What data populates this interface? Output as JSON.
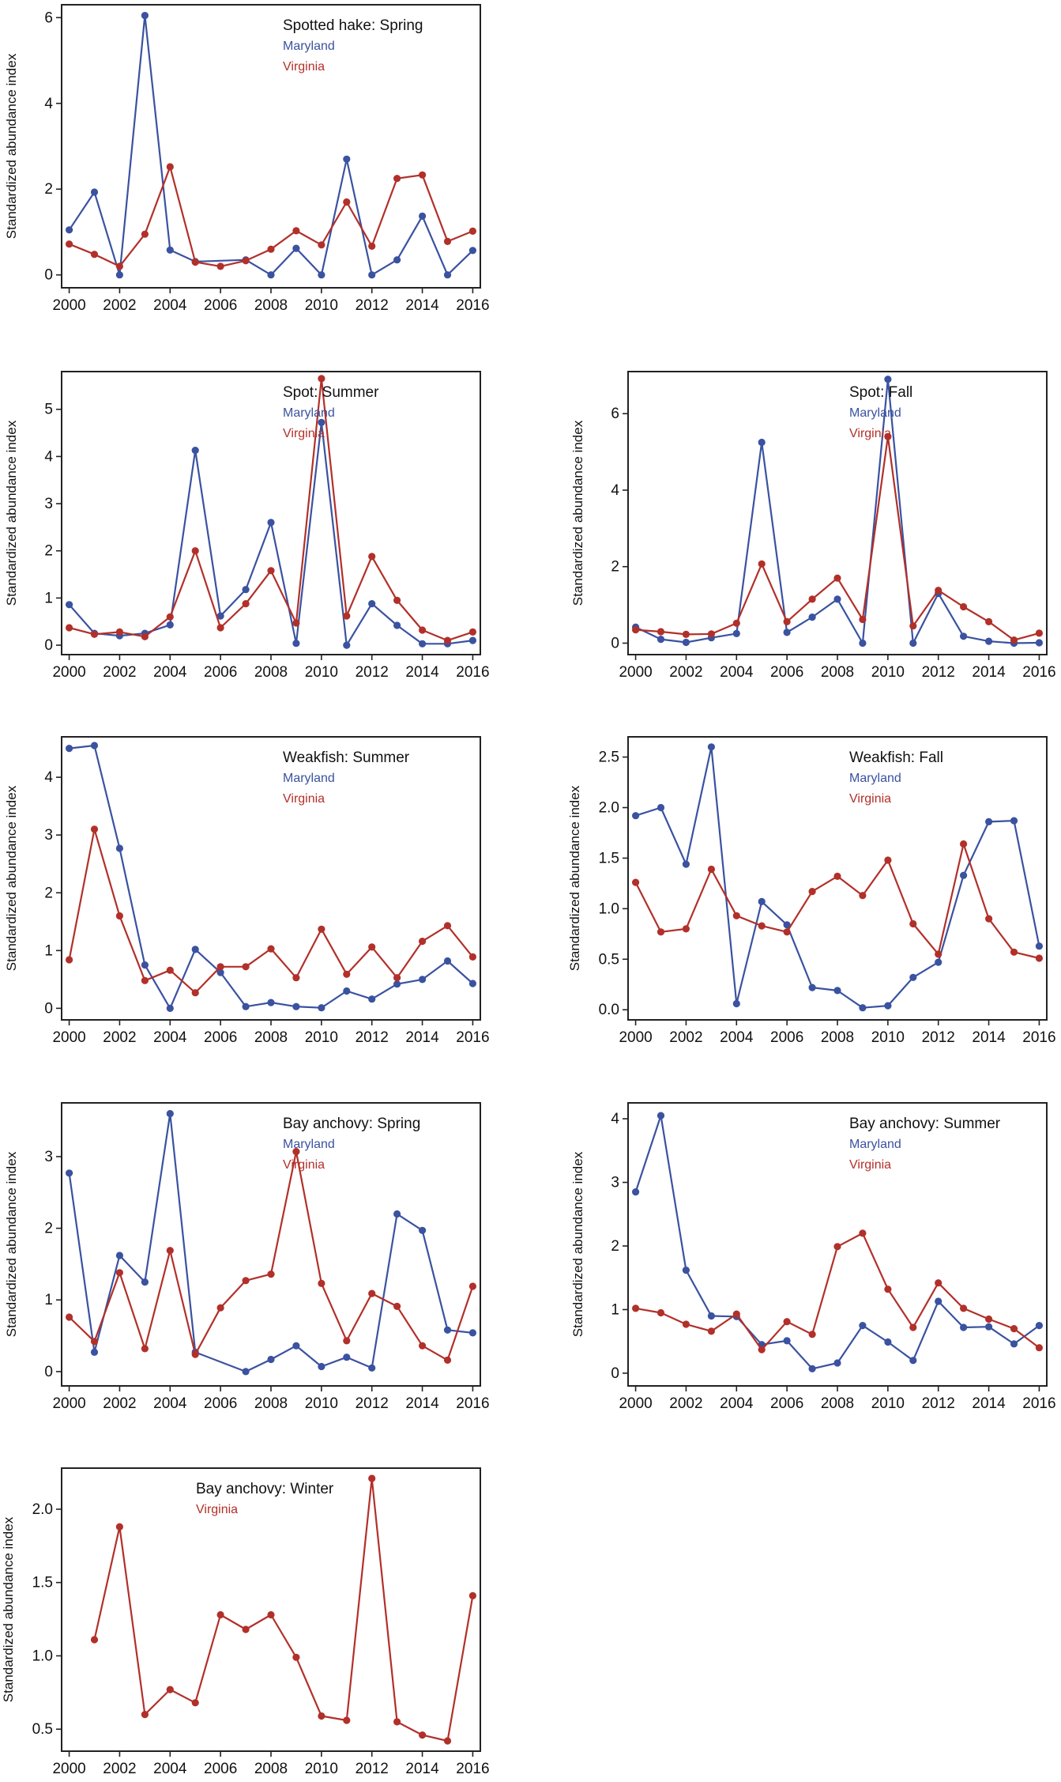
{
  "chart_data": [
    {
      "type": "line",
      "title": "Spotted hake: Spring",
      "ylabel": "Standardized abundance index",
      "xlabel": "",
      "x": [
        2000,
        2001,
        2002,
        2003,
        2004,
        2005,
        2006,
        2007,
        2008,
        2009,
        2010,
        2011,
        2012,
        2013,
        2014,
        2015,
        2016
      ],
      "xlim": [
        1999.7,
        2016.3
      ],
      "ylim": [
        -0.3,
        6.3
      ],
      "xticks": [
        2000,
        2002,
        2004,
        2006,
        2008,
        2010,
        2012,
        2014,
        2016
      ],
      "yticks": [
        0,
        2,
        4,
        6
      ],
      "ytick_labels": [
        "0",
        "2",
        "4",
        "6"
      ],
      "series": [
        {
          "name": "Maryland",
          "color": "#3a52a0",
          "values": [
            1.05,
            1.93,
            0.0,
            6.05,
            0.58,
            0.31,
            null,
            0.35,
            0.0,
            0.62,
            0.0,
            2.7,
            0.0,
            0.35,
            1.37,
            0.0,
            0.57
          ]
        },
        {
          "name": "Virginia",
          "color": "#b2302a",
          "values": [
            0.72,
            0.48,
            0.2,
            0.95,
            2.52,
            0.3,
            0.2,
            0.33,
            0.6,
            1.03,
            0.7,
            1.7,
            0.67,
            2.25,
            2.33,
            0.78,
            1.02
          ]
        }
      ],
      "legend_position": "top-right"
    },
    {
      "type": "line",
      "title": "Spot: Summer",
      "ylabel": "Standardized abundance index",
      "xlabel": "",
      "x": [
        2000,
        2001,
        2002,
        2003,
        2004,
        2005,
        2006,
        2007,
        2008,
        2009,
        2010,
        2011,
        2012,
        2013,
        2014,
        2015,
        2016
      ],
      "xlim": [
        1999.7,
        2016.3
      ],
      "ylim": [
        -0.2,
        5.8
      ],
      "xticks": [
        2000,
        2002,
        2004,
        2006,
        2008,
        2010,
        2012,
        2014,
        2016
      ],
      "yticks": [
        0,
        1,
        2,
        3,
        4,
        5
      ],
      "ytick_labels": [
        "0",
        "1",
        "2",
        "3",
        "4",
        "5"
      ],
      "series": [
        {
          "name": "Maryland",
          "color": "#3a52a0",
          "values": [
            0.86,
            0.25,
            0.2,
            0.25,
            0.43,
            4.13,
            0.62,
            1.18,
            2.6,
            0.04,
            4.72,
            0.0,
            0.88,
            0.42,
            0.03,
            0.03,
            0.1
          ]
        },
        {
          "name": "Virginia",
          "color": "#b2302a",
          "values": [
            0.37,
            0.23,
            0.28,
            0.18,
            0.6,
            2.0,
            0.37,
            0.88,
            1.58,
            0.47,
            5.65,
            0.62,
            1.88,
            0.95,
            0.32,
            0.1,
            0.28
          ]
        }
      ],
      "legend_position": "top-right"
    },
    {
      "type": "line",
      "title": "Spot: Fall",
      "ylabel": "Standardized abundance index",
      "xlabel": "",
      "x": [
        2000,
        2001,
        2002,
        2003,
        2004,
        2005,
        2006,
        2007,
        2008,
        2009,
        2010,
        2011,
        2012,
        2013,
        2014,
        2015,
        2016
      ],
      "xlim": [
        1999.7,
        2016.3
      ],
      "ylim": [
        -0.3,
        7.1
      ],
      "xticks": [
        2000,
        2002,
        2004,
        2006,
        2008,
        2010,
        2012,
        2014,
        2016
      ],
      "yticks": [
        0,
        2,
        4,
        6
      ],
      "ytick_labels": [
        "0",
        "2",
        "4",
        "6"
      ],
      "series": [
        {
          "name": "Maryland",
          "color": "#3a52a0",
          "values": [
            0.42,
            0.1,
            0.02,
            0.14,
            0.25,
            5.25,
            0.28,
            0.68,
            1.15,
            0.0,
            6.9,
            0.0,
            1.3,
            0.18,
            0.05,
            0.0,
            0.01
          ]
        },
        {
          "name": "Virginia",
          "color": "#b2302a",
          "values": [
            0.35,
            0.3,
            0.23,
            0.24,
            0.52,
            2.07,
            0.56,
            1.15,
            1.7,
            0.62,
            5.4,
            0.45,
            1.38,
            0.95,
            0.56,
            0.08,
            0.26
          ]
        }
      ],
      "legend_position": "top-right"
    },
    {
      "type": "line",
      "title": "Weakfish: Summer",
      "ylabel": "Standardized abundance index",
      "xlabel": "",
      "x": [
        2000,
        2001,
        2002,
        2003,
        2004,
        2005,
        2006,
        2007,
        2008,
        2009,
        2010,
        2011,
        2012,
        2013,
        2014,
        2015,
        2016
      ],
      "xlim": [
        1999.7,
        2016.3
      ],
      "ylim": [
        -0.2,
        4.7
      ],
      "xticks": [
        2000,
        2002,
        2004,
        2006,
        2008,
        2010,
        2012,
        2014,
        2016
      ],
      "yticks": [
        0,
        1,
        2,
        3,
        4
      ],
      "ytick_labels": [
        "0",
        "1",
        "2",
        "3",
        "4"
      ],
      "series": [
        {
          "name": "Maryland",
          "color": "#3a52a0",
          "values": [
            4.5,
            4.55,
            2.77,
            0.75,
            0.0,
            1.02,
            0.62,
            0.03,
            0.1,
            0.03,
            0.01,
            0.3,
            0.16,
            0.42,
            0.5,
            0.82,
            0.43
          ]
        },
        {
          "name": "Virginia",
          "color": "#b2302a",
          "values": [
            0.84,
            3.1,
            1.6,
            0.48,
            0.66,
            0.27,
            0.72,
            0.72,
            1.03,
            0.53,
            1.37,
            0.59,
            1.06,
            0.53,
            1.16,
            1.43,
            0.89
          ]
        }
      ],
      "legend_position": "top-right"
    },
    {
      "type": "line",
      "title": "Weakfish: Fall",
      "ylabel": "Standardized abundance index",
      "xlabel": "",
      "x": [
        2000,
        2001,
        2002,
        2003,
        2004,
        2005,
        2006,
        2007,
        2008,
        2009,
        2010,
        2011,
        2012,
        2013,
        2014,
        2015,
        2016
      ],
      "xlim": [
        1999.7,
        2016.3
      ],
      "ylim": [
        -0.1,
        2.7
      ],
      "xticks": [
        2000,
        2002,
        2004,
        2006,
        2008,
        2010,
        2012,
        2014,
        2016
      ],
      "yticks": [
        0.0,
        0.5,
        1.0,
        1.5,
        2.0,
        2.5
      ],
      "ytick_labels": [
        "0.0",
        "0.5",
        "1.0",
        "1.5",
        "2.0",
        "2.5"
      ],
      "series": [
        {
          "name": "Maryland",
          "color": "#3a52a0",
          "values": [
            1.92,
            2.0,
            1.44,
            2.6,
            0.06,
            1.07,
            0.84,
            0.22,
            0.19,
            0.02,
            0.04,
            0.32,
            0.47,
            1.33,
            1.86,
            1.87,
            0.63
          ]
        },
        {
          "name": "Virginia",
          "color": "#b2302a",
          "values": [
            1.26,
            0.77,
            0.8,
            1.39,
            0.93,
            0.83,
            0.77,
            1.17,
            1.32,
            1.13,
            1.48,
            0.85,
            0.55,
            1.64,
            0.9,
            0.57,
            0.51
          ]
        }
      ],
      "legend_position": "top-right"
    },
    {
      "type": "line",
      "title": "Bay anchovy: Spring",
      "ylabel": "Standardized abundance index",
      "xlabel": "",
      "x": [
        2000,
        2001,
        2002,
        2003,
        2004,
        2005,
        2006,
        2007,
        2008,
        2009,
        2010,
        2011,
        2012,
        2013,
        2014,
        2015,
        2016
      ],
      "xlim": [
        1999.7,
        2016.3
      ],
      "ylim": [
        -0.2,
        3.75
      ],
      "xticks": [
        2000,
        2002,
        2004,
        2006,
        2008,
        2010,
        2012,
        2014,
        2016
      ],
      "yticks": [
        0,
        1,
        2,
        3
      ],
      "ytick_labels": [
        "0",
        "1",
        "2",
        "3"
      ],
      "series": [
        {
          "name": "Maryland",
          "color": "#3a52a0",
          "values": [
            2.77,
            0.27,
            1.62,
            1.25,
            3.6,
            0.27,
            null,
            0.0,
            0.17,
            0.36,
            0.07,
            0.2,
            0.05,
            2.2,
            1.97,
            0.58,
            0.54
          ]
        },
        {
          "name": "Virginia",
          "color": "#b2302a",
          "values": [
            0.76,
            0.42,
            1.38,
            0.32,
            1.69,
            0.24,
            0.89,
            1.27,
            1.36,
            3.07,
            1.23,
            0.43,
            1.09,
            0.91,
            0.36,
            0.16,
            1.19
          ]
        }
      ],
      "legend_position": "top-right"
    },
    {
      "type": "line",
      "title": "Bay anchovy: Summer",
      "ylabel": "Standardized abundance index",
      "xlabel": "",
      "x": [
        2000,
        2001,
        2002,
        2003,
        2004,
        2005,
        2006,
        2007,
        2008,
        2009,
        2010,
        2011,
        2012,
        2013,
        2014,
        2015,
        2016
      ],
      "xlim": [
        1999.7,
        2016.3
      ],
      "ylim": [
        -0.2,
        4.25
      ],
      "xticks": [
        2000,
        2002,
        2004,
        2006,
        2008,
        2010,
        2012,
        2014,
        2016
      ],
      "yticks": [
        0,
        1,
        2,
        3,
        4
      ],
      "ytick_labels": [
        "0",
        "1",
        "2",
        "3",
        "4"
      ],
      "series": [
        {
          "name": "Maryland",
          "color": "#3a52a0",
          "values": [
            2.85,
            4.05,
            1.62,
            0.9,
            0.89,
            0.45,
            0.51,
            0.07,
            0.16,
            0.75,
            0.49,
            0.2,
            1.13,
            0.72,
            0.73,
            0.46,
            0.75
          ]
        },
        {
          "name": "Virginia",
          "color": "#b2302a",
          "values": [
            1.02,
            0.95,
            0.77,
            0.66,
            0.93,
            0.37,
            0.81,
            0.61,
            1.99,
            2.2,
            1.32,
            0.72,
            1.42,
            1.02,
            0.85,
            0.7,
            0.4
          ]
        }
      ],
      "legend_position": "top-right"
    },
    {
      "type": "line",
      "title": "Bay anchovy: Winter",
      "ylabel": "Standardized abundance index",
      "xlabel": "",
      "x": [
        2000,
        2001,
        2002,
        2003,
        2004,
        2005,
        2006,
        2007,
        2008,
        2009,
        2010,
        2011,
        2012,
        2013,
        2014,
        2015,
        2016
      ],
      "xlim": [
        1999.7,
        2016.3
      ],
      "ylim": [
        0.35,
        2.28
      ],
      "xticks": [
        2000,
        2002,
        2004,
        2006,
        2008,
        2010,
        2012,
        2014,
        2016
      ],
      "yticks": [
        0.5,
        1.0,
        1.5,
        2.0
      ],
      "ytick_labels": [
        "0.5",
        "1.0",
        "1.5",
        "2.0"
      ],
      "series": [
        {
          "name": "Virginia",
          "color": "#b2302a",
          "values": [
            null,
            1.11,
            1.88,
            0.6,
            0.77,
            0.68,
            1.28,
            1.18,
            1.28,
            0.99,
            0.59,
            0.56,
            2.21,
            0.55,
            0.46,
            0.42,
            1.41
          ]
        }
      ],
      "legend_position": "top-left"
    }
  ]
}
